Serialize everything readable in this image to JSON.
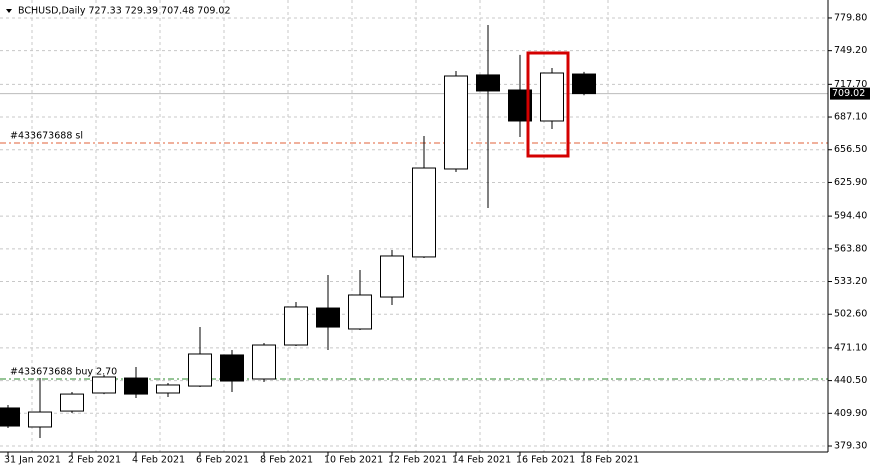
{
  "chart_data": {
    "type": "candlestick",
    "title": "BCHUSD,Daily  727.33 729.39 707.48 709.02",
    "categories": [
      "31 Jan 2021",
      null,
      "2 Feb 2021",
      null,
      "4 Feb 2021",
      null,
      "6 Feb 2021",
      null,
      "8 Feb 2021",
      null,
      "10 Feb 2021",
      null,
      "12 Feb 2021",
      null,
      "14 Feb 2021",
      null,
      "16 Feb 2021",
      null,
      "18 Feb 2021"
    ],
    "open": [
      414.9,
      397.1,
      412.0,
      428.9,
      442.9,
      428.9,
      435.4,
      464.5,
      442.0,
      473.8,
      508.4,
      488.8,
      518.7,
      556.2,
      638.5,
      726.5,
      712.4,
      683.4,
      727.33
    ],
    "high": [
      417.7,
      442.9,
      429.8,
      445.7,
      453.2,
      438.3,
      490.6,
      469.1,
      475.7,
      514.1,
      539.3,
      544.0,
      562.7,
      669.4,
      730.2,
      773.2,
      745.2,
      733.0,
      729.39
    ],
    "low": [
      396.1,
      386.8,
      410.2,
      427.9,
      424.2,
      425.2,
      434.5,
      429.8,
      439.2,
      472.9,
      469.1,
      487.8,
      511.2,
      555.2,
      635.7,
      602.0,
      668.4,
      675.9,
      707.48
    ],
    "close": [
      398.0,
      411.1,
      427.9,
      443.9,
      427.9,
      436.4,
      465.4,
      440.1,
      473.8,
      509.4,
      490.6,
      520.6,
      557.1,
      639.4,
      725.5,
      711.5,
      683.4,
      728.3,
      709.02
    ],
    "up_color": "#ffffff",
    "down_color": "#000000",
    "ylim": [
      373.7,
      796.6
    ],
    "yticks": [
      {
        "value": 379.3,
        "label": "379.30"
      },
      {
        "value": 409.9,
        "label": "409.90"
      },
      {
        "value": 440.5,
        "label": "440.50"
      },
      {
        "value": 471.1,
        "label": "471.10"
      },
      {
        "value": 502.6,
        "label": "502.60"
      },
      {
        "value": 533.2,
        "label": "533.20"
      },
      {
        "value": 563.8,
        "label": "563.80"
      },
      {
        "value": 594.4,
        "label": "594.40"
      },
      {
        "value": 625.9,
        "label": "625.90"
      },
      {
        "value": 656.5,
        "label": "656.50"
      },
      {
        "value": 687.1,
        "label": "687.10"
      },
      {
        "value": 717.7,
        "label": "717.70"
      },
      {
        "value": 749.2,
        "label": "749.20"
      },
      {
        "value": 779.8,
        "label": "779.80"
      }
    ],
    "grid": true,
    "current_price": {
      "value": 709.02,
      "label": "709.02"
    },
    "levels": [
      {
        "value": 662.8,
        "label": "#433673688 sl",
        "color": "#e0603a"
      },
      {
        "value": 442.0,
        "label": "#433673688 buy 2.70",
        "color": "#2e8b2e"
      }
    ]
  }
}
